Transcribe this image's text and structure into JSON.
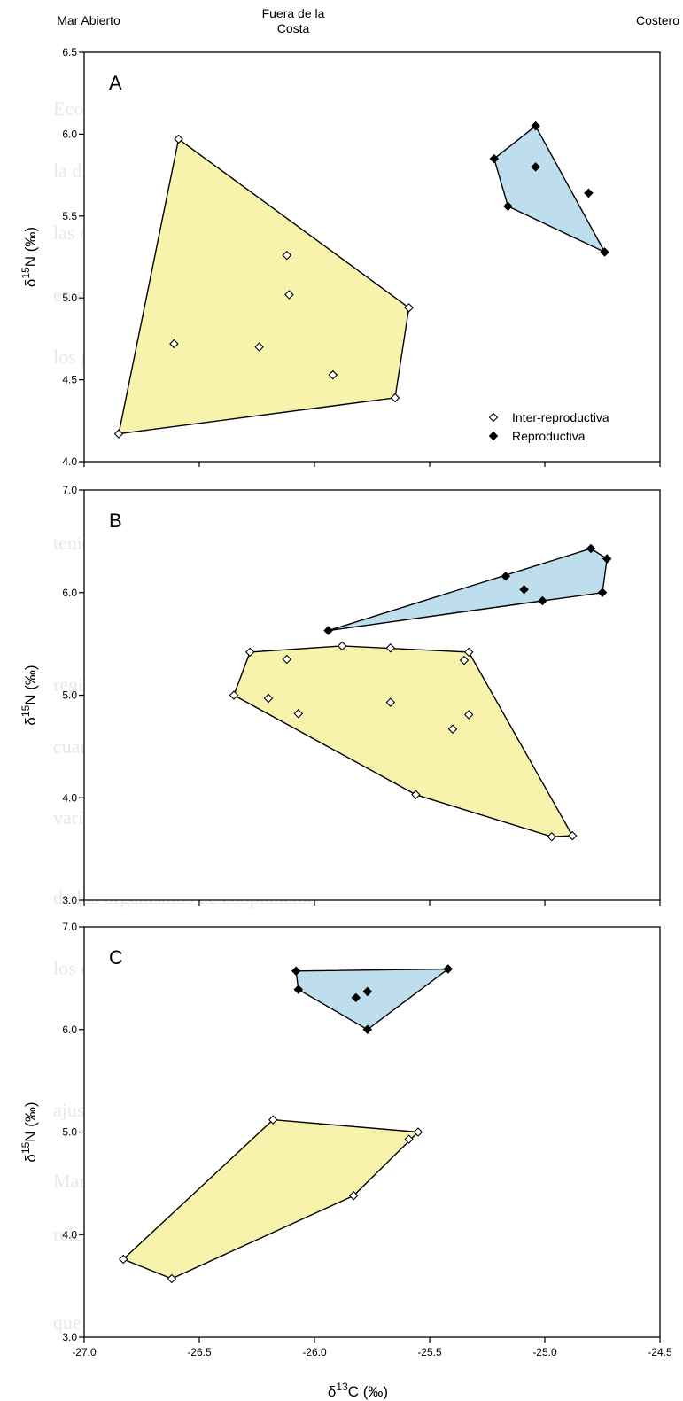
{
  "header_labels": [
    "Mar Abierto",
    "Fuera de la Costa",
    "Costero"
  ],
  "legend": {
    "inter": "Inter-reproductiva",
    "repro": "Reproductiva"
  },
  "colors": {
    "inter_fill": "#f7f3ad",
    "repro_fill": "#bfdeed",
    "line": "#000000"
  },
  "chart_data": [
    {
      "type": "scatter",
      "panel": "A",
      "xlabel": "δ13C (‰)",
      "ylabel": "δ15N (‰)",
      "xlim": [
        -27.0,
        -24.5
      ],
      "ylim": [
        4.0,
        6.5
      ],
      "yticks": [
        "4.0",
        "4.5",
        "5.0",
        "5.5",
        "6.0",
        "6.5"
      ],
      "series": [
        {
          "name": "Inter-reproductiva",
          "points": [
            [
              -26.85,
              4.17
            ],
            [
              -26.59,
              5.97
            ],
            [
              -26.12,
              5.26
            ],
            [
              -26.11,
              5.02
            ],
            [
              -26.61,
              4.72
            ],
            [
              -26.24,
              4.7
            ],
            [
              -25.92,
              4.53
            ],
            [
              -25.59,
              4.94
            ],
            [
              -25.65,
              4.39
            ]
          ],
          "hull": [
            [
              -26.85,
              4.17
            ],
            [
              -26.59,
              5.97
            ],
            [
              -25.59,
              4.94
            ],
            [
              -25.65,
              4.39
            ]
          ]
        },
        {
          "name": "Reproductiva",
          "points": [
            [
              -25.22,
              5.85
            ],
            [
              -25.04,
              6.05
            ],
            [
              -25.04,
              5.8
            ],
            [
              -24.81,
              5.64
            ],
            [
              -25.16,
              5.56
            ],
            [
              -24.74,
              5.28
            ]
          ],
          "hull": [
            [
              -25.22,
              5.85
            ],
            [
              -25.04,
              6.05
            ],
            [
              -24.74,
              5.28
            ],
            [
              -25.16,
              5.56
            ]
          ]
        }
      ]
    },
    {
      "type": "scatter",
      "panel": "B",
      "xlabel": "δ13C (‰)",
      "ylabel": "δ15N (‰)",
      "xlim": [
        -27.0,
        -24.5
      ],
      "ylim": [
        3.0,
        7.0
      ],
      "yticks": [
        "3.0",
        "4.0",
        "5.0",
        "6.0",
        "7.0"
      ],
      "series": [
        {
          "name": "Inter-reproductiva",
          "points": [
            [
              -26.35,
              5.0
            ],
            [
              -26.28,
              5.42
            ],
            [
              -26.12,
              5.35
            ],
            [
              -25.88,
              5.48
            ],
            [
              -25.67,
              5.46
            ],
            [
              -25.33,
              5.42
            ],
            [
              -25.35,
              5.34
            ],
            [
              -25.33,
              4.81
            ],
            [
              -25.67,
              4.93
            ],
            [
              -25.4,
              4.67
            ],
            [
              -26.2,
              4.97
            ],
            [
              -26.07,
              4.82
            ],
            [
              -25.56,
              4.03
            ],
            [
              -24.97,
              3.62
            ],
            [
              -24.88,
              3.63
            ]
          ],
          "hull": [
            [
              -26.35,
              5.0
            ],
            [
              -26.28,
              5.42
            ],
            [
              -25.88,
              5.48
            ],
            [
              -25.33,
              5.42
            ],
            [
              -24.88,
              3.63
            ],
            [
              -24.97,
              3.62
            ],
            [
              -25.56,
              4.03
            ]
          ]
        },
        {
          "name": "Reproductiva",
          "points": [
            [
              -25.94,
              5.63
            ],
            [
              -25.17,
              6.16
            ],
            [
              -25.09,
              6.03
            ],
            [
              -25.01,
              5.92
            ],
            [
              -24.8,
              6.43
            ],
            [
              -24.73,
              6.33
            ],
            [
              -24.75,
              6.0
            ]
          ],
          "hull": [
            [
              -25.94,
              5.63
            ],
            [
              -24.8,
              6.43
            ],
            [
              -24.73,
              6.33
            ],
            [
              -24.75,
              6.0
            ],
            [
              -25.01,
              5.92
            ]
          ]
        }
      ]
    },
    {
      "type": "scatter",
      "panel": "C",
      "xlabel": "δ13C (‰)",
      "ylabel": "δ15N (‰)",
      "xlim": [
        -27.0,
        -24.5
      ],
      "ylim": [
        3.0,
        7.0
      ],
      "yticks": [
        "3.0",
        "4.0",
        "5.0",
        "6.0",
        "7.0"
      ],
      "xticks": [
        "-27.0",
        "-26.5",
        "-26.0",
        "-25.5",
        "-25.0",
        "-24.5"
      ],
      "series": [
        {
          "name": "Inter-reproductiva",
          "points": [
            [
              -26.83,
              3.76
            ],
            [
              -26.62,
              3.57
            ],
            [
              -26.18,
              5.12
            ],
            [
              -25.55,
              5.0
            ],
            [
              -25.59,
              4.93
            ],
            [
              -25.83,
              4.38
            ]
          ],
          "hull": [
            [
              -26.83,
              3.76
            ],
            [
              -26.18,
              5.12
            ],
            [
              -25.55,
              5.0
            ],
            [
              -25.83,
              4.38
            ],
            [
              -26.62,
              3.57
            ]
          ]
        },
        {
          "name": "Reproductiva",
          "points": [
            [
              -26.08,
              6.57
            ],
            [
              -26.07,
              6.39
            ],
            [
              -25.82,
              6.31
            ],
            [
              -25.77,
              6.37
            ],
            [
              -25.77,
              6.0
            ],
            [
              -25.42,
              6.59
            ]
          ],
          "hull": [
            [
              -26.08,
              6.57
            ],
            [
              -25.42,
              6.59
            ],
            [
              -25.77,
              6.0
            ],
            [
              -26.07,
              6.39
            ]
          ]
        }
      ]
    }
  ]
}
